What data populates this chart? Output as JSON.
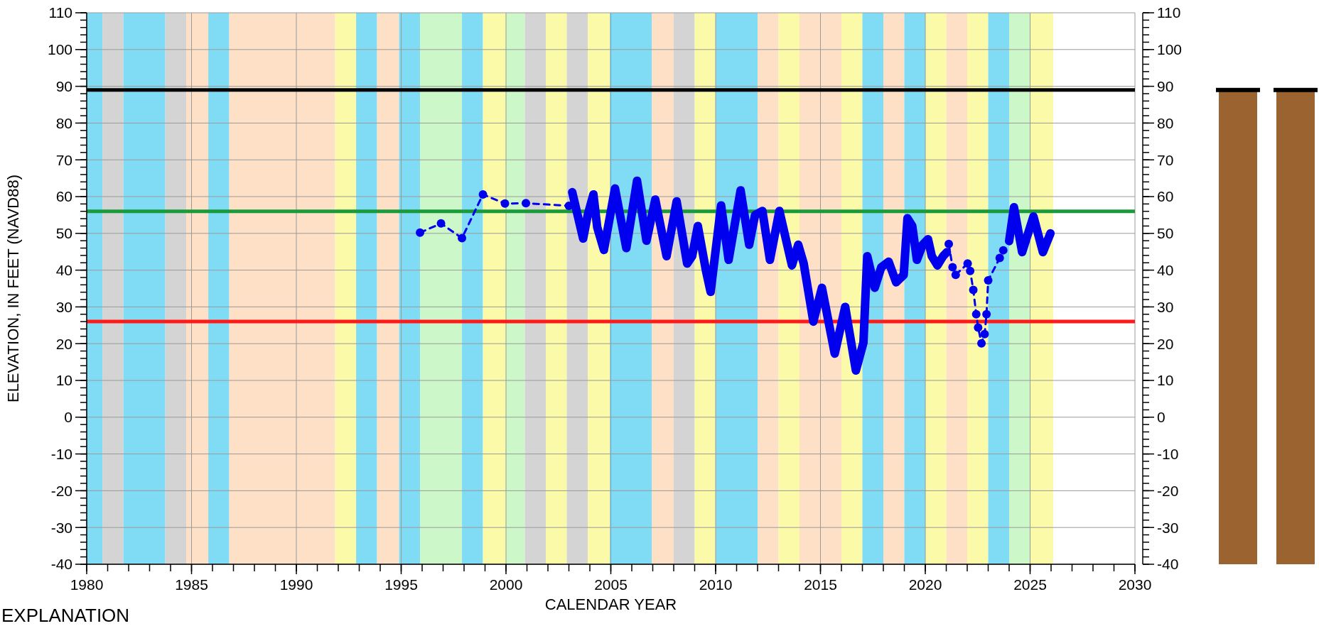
{
  "chart_data": {
    "type": "line",
    "xlabel": "CALENDAR YEAR",
    "ylabel": "ELEVATION, IN FEET (NAVD88)",
    "annotations": [
      "EXPLANATION"
    ],
    "xlim": [
      1980,
      2030
    ],
    "xticks": [
      1980,
      1985,
      1990,
      1995,
      2000,
      2005,
      2010,
      2015,
      2020,
      2025,
      2030
    ],
    "ylim": [
      -40,
      110
    ],
    "yticks": [
      -40,
      -30,
      -20,
      -10,
      0,
      10,
      20,
      30,
      40,
      50,
      60,
      70,
      80,
      90,
      100,
      110
    ],
    "y2lim": [
      -40,
      110
    ],
    "y2ticks": [
      -40,
      -30,
      -20,
      -10,
      0,
      10,
      20,
      30,
      40,
      50,
      60,
      70,
      80,
      90,
      100,
      110
    ],
    "grid": true,
    "ref_lines": [
      {
        "axis": "y",
        "value": 89,
        "color": "#000000"
      },
      {
        "axis": "y",
        "value": 56,
        "color": "#1a9a3a"
      },
      {
        "axis": "y",
        "value": 26,
        "color": "#ff1a1a"
      }
    ],
    "bands": [
      {
        "axis": "x",
        "from": 1980,
        "to": 1980.75,
        "color": "#80dcf5"
      },
      {
        "axis": "x",
        "from": 1980.75,
        "to": 1981.75,
        "color": "#d4d4d4"
      },
      {
        "axis": "x",
        "from": 1981.75,
        "to": 1983.75,
        "color": "#80dcf5"
      },
      {
        "axis": "x",
        "from": 1983.75,
        "to": 1984.75,
        "color": "#d4d4d4"
      },
      {
        "axis": "x",
        "from": 1984.75,
        "to": 1985.8,
        "color": "#fde0c6"
      },
      {
        "axis": "x",
        "from": 1985.8,
        "to": 1986.8,
        "color": "#80dcf5"
      },
      {
        "axis": "x",
        "from": 1986.8,
        "to": 1991.85,
        "color": "#fde0c6"
      },
      {
        "axis": "x",
        "from": 1991.85,
        "to": 1992.85,
        "color": "#fafaa8"
      },
      {
        "axis": "x",
        "from": 1992.85,
        "to": 1993.85,
        "color": "#80dcf5"
      },
      {
        "axis": "x",
        "from": 1993.85,
        "to": 1994.9,
        "color": "#fde0c6"
      },
      {
        "axis": "x",
        "from": 1994.9,
        "to": 1995.9,
        "color": "#80dcf5"
      },
      {
        "axis": "x",
        "from": 1995.9,
        "to": 1997.9,
        "color": "#ccf7c8"
      },
      {
        "axis": "x",
        "from": 1997.9,
        "to": 1998.9,
        "color": "#80dcf5"
      },
      {
        "axis": "x",
        "from": 1998.9,
        "to": 2000,
        "color": "#fafaa8"
      },
      {
        "axis": "x",
        "from": 2000,
        "to": 2000.9,
        "color": "#ccf7c8"
      },
      {
        "axis": "x",
        "from": 2000.9,
        "to": 2001.9,
        "color": "#d4d4d4"
      },
      {
        "axis": "x",
        "from": 2001.9,
        "to": 2002.9,
        "color": "#fafaa8"
      },
      {
        "axis": "x",
        "from": 2002.9,
        "to": 2003.9,
        "color": "#d4d4d4"
      },
      {
        "axis": "x",
        "from": 2003.9,
        "to": 2004.95,
        "color": "#fafaa8"
      },
      {
        "axis": "x",
        "from": 2004.95,
        "to": 2006.95,
        "color": "#80dcf5"
      },
      {
        "axis": "x",
        "from": 2006.95,
        "to": 2008,
        "color": "#fde0c6"
      },
      {
        "axis": "x",
        "from": 2008,
        "to": 2009,
        "color": "#d4d4d4"
      },
      {
        "axis": "x",
        "from": 2009,
        "to": 2010,
        "color": "#fafaa8"
      },
      {
        "axis": "x",
        "from": 2010,
        "to": 2012,
        "color": "#80dcf5"
      },
      {
        "axis": "x",
        "from": 2012,
        "to": 2013,
        "color": "#fde0c6"
      },
      {
        "axis": "x",
        "from": 2013,
        "to": 2014,
        "color": "#fafaa8"
      },
      {
        "axis": "x",
        "from": 2014,
        "to": 2016,
        "color": "#fde0c6"
      },
      {
        "axis": "x",
        "from": 2016,
        "to": 2017,
        "color": "#fafaa8"
      },
      {
        "axis": "x",
        "from": 2017,
        "to": 2018,
        "color": "#80dcf5"
      },
      {
        "axis": "x",
        "from": 2018,
        "to": 2019,
        "color": "#fde0c6"
      },
      {
        "axis": "x",
        "from": 2019,
        "to": 2020,
        "color": "#80dcf5"
      },
      {
        "axis": "x",
        "from": 2020,
        "to": 2021,
        "color": "#fafaa8"
      },
      {
        "axis": "x",
        "from": 2021,
        "to": 2022,
        "color": "#fde0c6"
      },
      {
        "axis": "x",
        "from": 2022,
        "to": 2023,
        "color": "#fafaa8"
      },
      {
        "axis": "x",
        "from": 2023,
        "to": 2024,
        "color": "#80dcf5"
      },
      {
        "axis": "x",
        "from": 2024,
        "to": 2025,
        "color": "#ccf7c8"
      },
      {
        "axis": "x",
        "from": 2025,
        "to": 2026.1,
        "color": "#fafaa8"
      }
    ],
    "series": [
      {
        "color": "#0000ee",
        "line_style": "dashed",
        "marker": "circle",
        "x": [
          1995.9,
          1996.9,
          1997.9,
          1998.9,
          1999.95,
          2000.95,
          2003.0,
          2012,
          2021.12,
          2021.3,
          2021.45,
          2022.02,
          2022.14,
          2022.29,
          2022.43,
          2022.52,
          2022.68,
          2022.83,
          2022.92,
          2023.0,
          2023.55,
          2023.72
        ],
        "values": [
          50.2,
          52.7,
          48.7,
          60.6,
          58.1,
          58.2,
          57.5,
          null,
          47.1,
          40.8,
          38.7,
          41.8,
          39.8,
          34.6,
          28,
          24.4,
          20.1,
          22.6,
          28,
          37.2,
          43.3,
          45.4
        ]
      },
      {
        "color": "#0000ee",
        "line_style": "solid",
        "marker": "none",
        "x": [
          2003.16,
          2003.68,
          2003.9,
          2004.17,
          2004.35,
          2004.67,
          2005.2,
          2005.74,
          2006.25,
          2006.7,
          2007.12,
          2007.66,
          2008.14,
          2008.64,
          2008.88,
          2009.15,
          2009.54,
          2009.76,
          2010.26,
          2010.62,
          2011.19,
          2011.6,
          2011.88,
          2012.23,
          2012.59,
          2013.04,
          2013.64,
          2013.94,
          2014.2,
          2014.66,
          2015.07,
          2015.68,
          2016.18,
          2016.69,
          2017.05,
          2017.23,
          2017.59,
          2017.9,
          2018.25,
          2018.61,
          2018.97,
          2019.15,
          2019.38,
          2019.6,
          2019.87,
          2020.13,
          2020.31,
          2020.58,
          2020.85,
          2021.03,
          2022.5,
          2024.0,
          2024.23,
          2024.62,
          2025.16,
          2025.61,
          2025.97
        ],
        "values": [
          61.2,
          48.6,
          55,
          60.6,
          51.7,
          45.5,
          62.2,
          46,
          64.3,
          48,
          59.2,
          43.8,
          58.7,
          41.8,
          43.8,
          52,
          39.8,
          34.1,
          57.6,
          42.8,
          61.7,
          46.9,
          55,
          56.1,
          42.8,
          56.1,
          41.3,
          46.9,
          41.8,
          26,
          35.2,
          17.3,
          30,
          12.7,
          20.3,
          43.8,
          35.2,
          40.8,
          42.3,
          36.7,
          38.7,
          54.1,
          52,
          42.8,
          46.9,
          48.4,
          43.8,
          41.3,
          43.8,
          44.9,
          null,
          47.9,
          57.1,
          44.9,
          54.6,
          44.9,
          50
        ]
      }
    ]
  }
}
